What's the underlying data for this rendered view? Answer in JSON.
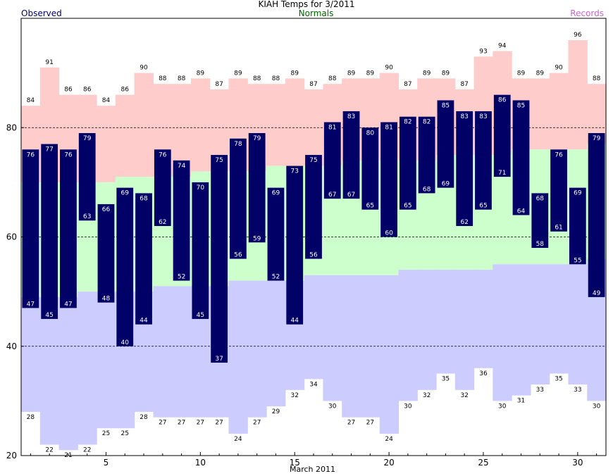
{
  "chart_data": {
    "type": "bar",
    "title": "KIAH Temps for 3/2011",
    "xlabel": "March 2011",
    "ylabel": "",
    "legend": {
      "observed": "Observed",
      "normals": "Normals",
      "records": "Records"
    },
    "colors": {
      "observed": "#000066",
      "observed_text": "#ffffff",
      "normal_band": "#ccffcc",
      "record_high_band": "#ffcccc",
      "record_low_band": "#ccccff",
      "normals_label": "#006600",
      "records_label": "#cc66cc",
      "observed_label": "#000066"
    },
    "ylim": [
      20,
      100
    ],
    "xlim": [
      0.5,
      31.5
    ],
    "yticks": [
      20,
      40,
      60,
      80
    ],
    "xticks": [
      5,
      10,
      15,
      20,
      25,
      30
    ],
    "grid": "dashed at 40, 60, 80",
    "days": [
      1,
      2,
      3,
      4,
      5,
      6,
      7,
      8,
      9,
      10,
      11,
      12,
      13,
      14,
      15,
      16,
      17,
      18,
      19,
      20,
      21,
      22,
      23,
      24,
      25,
      26,
      27,
      28,
      29,
      30,
      31
    ],
    "obs_high": [
      76,
      77,
      76,
      79,
      66,
      69,
      68,
      76,
      74,
      70,
      75,
      78,
      79,
      69,
      73,
      75,
      81,
      83,
      80,
      81,
      82,
      82,
      85,
      83,
      83,
      86,
      85,
      68,
      76,
      69,
      79
    ],
    "obs_low": [
      47,
      45,
      47,
      63,
      48,
      40,
      44,
      62,
      52,
      45,
      37,
      56,
      59,
      52,
      44,
      56,
      67,
      67,
      65,
      60,
      65,
      68,
      69,
      62,
      65,
      71,
      64,
      58,
      61,
      55,
      49
    ],
    "normal_high": [
      70,
      70,
      70,
      70,
      70,
      71,
      71,
      71,
      71,
      72,
      72,
      72,
      72,
      73,
      73,
      73,
      73,
      74,
      74,
      74,
      74,
      74,
      75,
      75,
      75,
      75,
      76,
      76,
      76,
      76,
      77
    ],
    "normal_low": [
      49,
      49,
      49,
      50,
      50,
      50,
      50,
      51,
      51,
      51,
      51,
      52,
      52,
      52,
      52,
      53,
      53,
      53,
      53,
      53,
      54,
      54,
      54,
      54,
      54,
      55,
      55,
      55,
      55,
      55,
      56
    ],
    "record_high": [
      84,
      91,
      86,
      86,
      84,
      86,
      90,
      88,
      88,
      89,
      87,
      89,
      88,
      88,
      89,
      87,
      88,
      89,
      89,
      90,
      87,
      89,
      89,
      87,
      93,
      94,
      89,
      89,
      90,
      96,
      88
    ],
    "record_low": [
      28,
      22,
      21,
      22,
      25,
      25,
      28,
      27,
      27,
      27,
      27,
      24,
      27,
      29,
      32,
      34,
      30,
      27,
      27,
      24,
      30,
      32,
      35,
      32,
      36,
      30,
      31,
      33,
      35,
      33,
      30
    ]
  }
}
